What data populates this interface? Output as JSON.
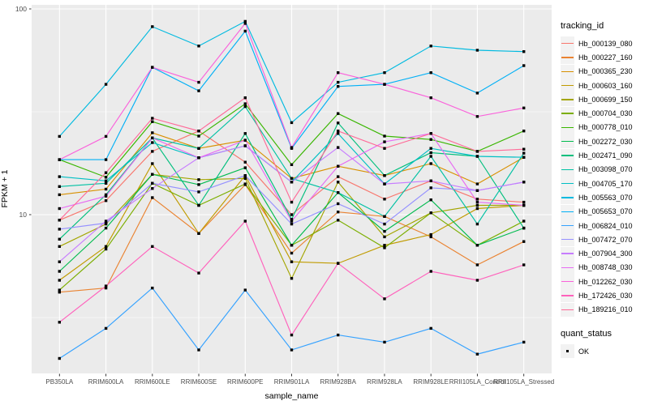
{
  "chart_data": {
    "type": "line",
    "title": "",
    "xlabel": "sample_name",
    "ylabel": "FPKM + 1",
    "x_scale": "discrete",
    "y_scale": "log10",
    "y_ticks": [
      10,
      100
    ],
    "y_minor_ticks": [
      3.1623,
      31.623
    ],
    "ylim": [
      1.7,
      105
    ],
    "grid": true,
    "legend_position": "right",
    "categories": [
      "PB350LA",
      "RRIM600LA",
      "RRIM600LE",
      "RRIM600SE",
      "RRIM600PE",
      "RRIM901LA",
      "RRIM928BA",
      "RRIM928LA",
      "RRIM928LE",
      "RRII105LA_Control",
      "RRII105LA_Stressed"
    ],
    "series": [
      {
        "name": "Hb_000139_080",
        "color": "#F8766D",
        "values": [
          9.4,
          11.7,
          20.3,
          25.5,
          18.0,
          10.0,
          15.3,
          11.9,
          14.6,
          11.9,
          11.5
        ]
      },
      {
        "name": "Hb_000227_160",
        "color": "#EA8331",
        "values": [
          4.2,
          4.4,
          12.1,
          8.1,
          14.0,
          6.5,
          10.3,
          9.8,
          7.8,
          5.7,
          7.4
        ]
      },
      {
        "name": "Hb_000365_230",
        "color": "#D89000",
        "values": [
          12.5,
          13.3,
          25.0,
          21.0,
          23.0,
          15.0,
          17.2,
          15.5,
          17.7,
          14.1,
          19.0
        ]
      },
      {
        "name": "Hb_000603_160",
        "color": "#C09B00",
        "values": [
          4.8,
          7.0,
          17.7,
          8.1,
          15.5,
          5.9,
          5.8,
          7.1,
          8.0,
          10.7,
          11.1
        ]
      },
      {
        "name": "Hb_000699_150",
        "color": "#A3A500",
        "values": [
          7.0,
          9.0,
          15.7,
          14.8,
          15.0,
          4.9,
          14.4,
          7.8,
          10.2,
          11.1,
          11.1
        ]
      },
      {
        "name": "Hb_000704_030",
        "color": "#7CAE00",
        "values": [
          4.3,
          6.8,
          14.2,
          11.1,
          14.1,
          7.1,
          9.4,
          6.9,
          10.2,
          7.1,
          9.3
        ]
      },
      {
        "name": "Hb_000778_010",
        "color": "#39B600",
        "values": [
          18.5,
          15.2,
          28.3,
          24.1,
          34.6,
          17.5,
          31.0,
          24.1,
          23.2,
          20.3,
          25.5
        ]
      },
      {
        "name": "Hb_002272_030",
        "color": "#00BB4E",
        "values": [
          5.3,
          8.6,
          15.7,
          14.0,
          16.9,
          7.1,
          12.8,
          8.3,
          11.8,
          7.1,
          8.6
        ]
      },
      {
        "name": "Hb_002471_090",
        "color": "#00BF7D",
        "values": [
          7.6,
          12.5,
          23.6,
          11.1,
          24.8,
          9.5,
          27.9,
          15.5,
          20.0,
          19.2,
          8.6
        ]
      },
      {
        "name": "Hb_003098_070",
        "color": "#00C1A3",
        "values": [
          13.7,
          14.2,
          23.6,
          21.0,
          33.5,
          15.0,
          12.8,
          9.8,
          19.2,
          9.0,
          19.9
        ]
      },
      {
        "name": "Hb_004705_170",
        "color": "#00BFC4",
        "values": [
          15.3,
          14.6,
          22.4,
          18.9,
          21.6,
          14.4,
          24.8,
          14.1,
          21.0,
          19.2,
          19.0
        ]
      },
      {
        "name": "Hb_005563_070",
        "color": "#00BAE0",
        "values": [
          24.0,
          43.0,
          82.0,
          66.0,
          87.0,
          28.0,
          44.0,
          49.0,
          66.0,
          63.0,
          62.0
        ]
      },
      {
        "name": "Hb_005653_070",
        "color": "#00B0F6",
        "values": [
          18.5,
          18.5,
          52.0,
          40.0,
          78.0,
          21.0,
          42.0,
          43.0,
          49.0,
          39.0,
          53.0
        ]
      },
      {
        "name": "Hb_006824_010",
        "color": "#35A2FF",
        "values": [
          2.0,
          2.8,
          4.4,
          2.2,
          4.3,
          2.2,
          2.6,
          2.4,
          2.8,
          2.1,
          2.4
        ]
      },
      {
        "name": "Hb_007472_070",
        "color": "#9590FF",
        "values": [
          8.5,
          9.1,
          14.2,
          12.9,
          15.5,
          9.0,
          11.3,
          9.0,
          13.5,
          13.1,
          14.4
        ]
      },
      {
        "name": "Hb_007904_300",
        "color": "#C77CFF",
        "values": [
          5.9,
          9.3,
          13.4,
          18.9,
          21.6,
          14.4,
          21.2,
          14.1,
          14.6,
          13.1,
          14.4
        ]
      },
      {
        "name": "Hb_008748_030",
        "color": "#E76BF3",
        "values": [
          10.7,
          12.3,
          23.6,
          18.9,
          23.0,
          9.3,
          17.2,
          22.6,
          24.8,
          11.5,
          11.1
        ]
      },
      {
        "name": "Hb_012262_030",
        "color": "#FA62DB",
        "values": [
          18.5,
          24.0,
          52.0,
          44.0,
          85.0,
          21.2,
          49.0,
          43.0,
          37.0,
          30.0,
          33.0
        ]
      },
      {
        "name": "Hb_172426_030",
        "color": "#FF62BC",
        "values": [
          3.0,
          4.5,
          7.0,
          5.2,
          9.3,
          2.6,
          5.8,
          3.9,
          5.3,
          4.8,
          5.7
        ]
      },
      {
        "name": "Hb_189216_010",
        "color": "#FF6A98",
        "values": [
          9.4,
          16.0,
          29.4,
          25.5,
          37.0,
          11.5,
          25.5,
          21.0,
          24.8,
          20.3,
          20.8
        ]
      }
    ],
    "legends": {
      "tracking": {
        "title": "tracking_id"
      },
      "quant": {
        "title": "quant_status",
        "items": [
          {
            "label": "OK",
            "marker": "square",
            "color": "#000000"
          }
        ]
      }
    },
    "point_marker": {
      "shape": "square",
      "color": "#000000",
      "size": 3.4
    }
  },
  "style_colors": {
    "panel_bg": "#EBEBEB",
    "grid": "#FFFFFF",
    "tick_text": "#4D4D4D",
    "tick_mark": "#333333",
    "axis_title": "#000000",
    "legend_key_bg": "#F2F2F2"
  }
}
